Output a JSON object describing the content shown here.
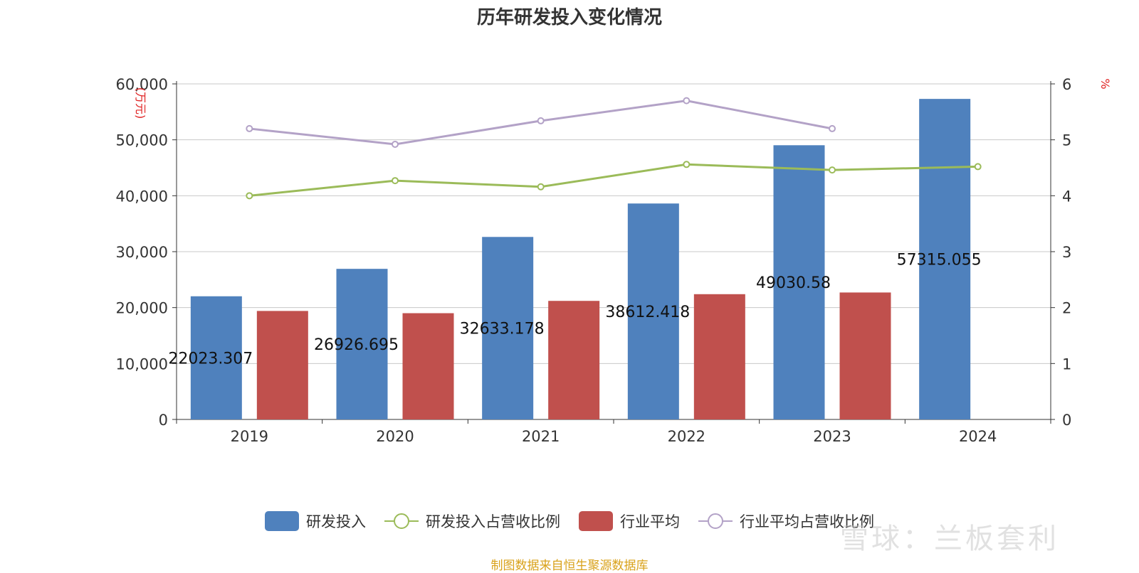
{
  "title": "历年研发投入变化情况",
  "source": "制图数据来自恒生聚源数据库",
  "watermark": "雪球：兰板套利",
  "chart_data": {
    "type": "bar",
    "categories": [
      "2019",
      "2020",
      "2021",
      "2022",
      "2023",
      "2024"
    ],
    "ylabel_left": "(万元)",
    "ylabel_right": "%",
    "ylim_left": [
      0,
      60000
    ],
    "ylim_right": [
      0,
      6
    ],
    "yticks_left": [
      "0",
      "10,000",
      "20,000",
      "30,000",
      "40,000",
      "50,000",
      "60,000"
    ],
    "yticks_right": [
      "0",
      "1",
      "2",
      "3",
      "4",
      "5",
      "6"
    ],
    "grid": true,
    "legend_position": "bottom",
    "series": [
      {
        "name": "研发投入",
        "kind": "bar",
        "axis": "left",
        "color": "#4f81bd",
        "values": [
          22023.307,
          26926.695,
          32633.178,
          38612.418,
          49030.58,
          57315.055
        ],
        "labels": [
          "22023.307",
          "26926.695",
          "32633.178",
          "38612.418",
          "49030.58",
          "57315.055"
        ]
      },
      {
        "name": "研发投入占营收比例",
        "kind": "line",
        "axis": "right",
        "color": "#9bbb59",
        "values": [
          4.0,
          4.27,
          4.16,
          4.56,
          4.46,
          4.52
        ]
      },
      {
        "name": "行业平均",
        "kind": "bar",
        "axis": "left",
        "color": "#c0504d",
        "values": [
          19400,
          19000,
          21200,
          22400,
          22700,
          null
        ]
      },
      {
        "name": "行业平均占营收比例",
        "kind": "line",
        "axis": "right",
        "color": "#b3a2c7",
        "values": [
          5.2,
          4.92,
          5.34,
          5.7,
          5.2,
          null
        ]
      }
    ]
  }
}
